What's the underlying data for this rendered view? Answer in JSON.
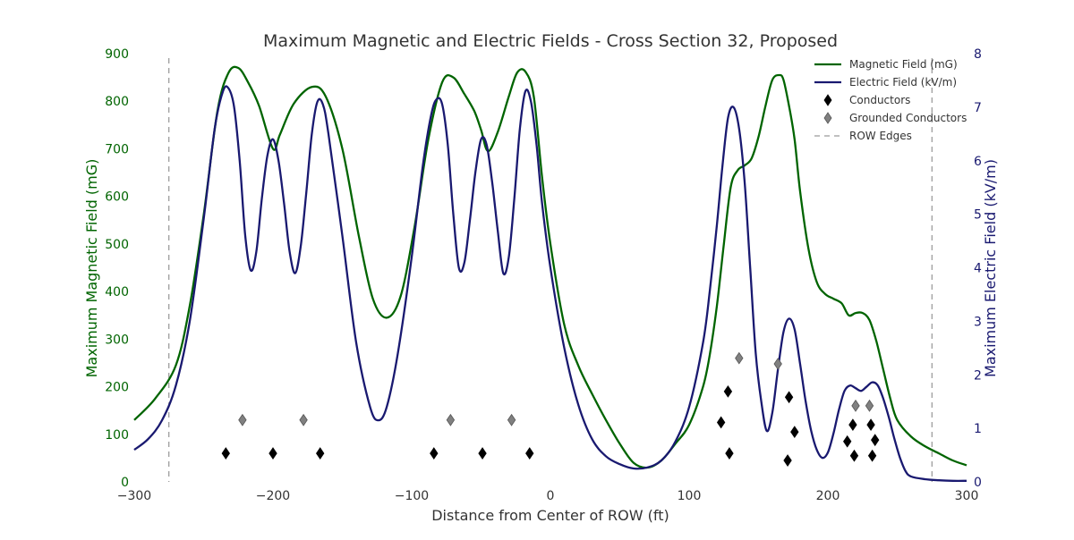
{
  "chart_data": {
    "type": "line",
    "title": "Maximum Magnetic and Electric Fields - Cross Section 32, Proposed",
    "xlabel": "Distance from Center of ROW (ft)",
    "ylabel_left": "Maximum Magnetic Field (mG)",
    "ylabel_right": "Maximum Electric Field (kV/m)",
    "xlim": [
      -300,
      300
    ],
    "ylim_left": [
      0,
      900
    ],
    "ylim_right": [
      0,
      8
    ],
    "x_ticks": [
      -300,
      -200,
      -100,
      0,
      100,
      200,
      300
    ],
    "x_tick_labels": [
      "−300",
      "−200",
      "−100",
      "0",
      "100",
      "200",
      "300"
    ],
    "y_ticks_left": [
      0,
      100,
      200,
      300,
      400,
      500,
      600,
      700,
      800,
      900
    ],
    "y_ticks_right": [
      0,
      1,
      2,
      3,
      4,
      5,
      6,
      7,
      8
    ],
    "grid": false,
    "legend_position": "top-right",
    "colors": {
      "magnetic": "#006400",
      "electric": "#191970",
      "conductor": "#000000",
      "grounded": "#808080",
      "row_edge": "#808080"
    },
    "series": [
      {
        "name": "Magnetic Field (mG)",
        "axis": "left",
        "x": [
          -300,
          -285,
          -270,
          -260,
          -250,
          -240,
          -232,
          -225,
          -218,
          -210,
          -200,
          -195,
          -185,
          -172,
          -162,
          -150,
          -138,
          -128,
          -118,
          -108,
          -98,
          -88,
          -78,
          -70,
          -62,
          -55,
          -50,
          -45,
          -38,
          -30,
          -24,
          -18,
          -12,
          -6,
          0,
          10,
          20,
          30,
          40,
          50,
          60,
          70,
          80,
          90,
          100,
          110,
          115,
          120,
          125,
          130,
          135,
          140,
          145,
          150,
          155,
          160,
          165,
          168,
          172,
          176,
          180,
          186,
          192,
          198,
          204,
          210,
          215,
          220,
          225,
          230,
          235,
          240,
          245,
          250,
          260,
          270,
          280,
          290,
          300
        ],
        "values": [
          130,
          175,
          245,
          370,
          560,
          780,
          860,
          870,
          840,
          790,
          700,
          730,
          795,
          830,
          810,
          700,
          515,
          385,
          345,
          390,
          535,
          720,
          840,
          850,
          815,
          780,
          740,
          695,
          735,
          810,
          860,
          862,
          810,
          640,
          500,
          330,
          245,
          185,
          130,
          80,
          40,
          30,
          45,
          80,
          120,
          200,
          270,
          370,
          500,
          620,
          655,
          665,
          680,
          725,
          790,
          845,
          855,
          845,
          790,
          720,
          610,
          490,
          420,
          395,
          385,
          375,
          350,
          355,
          355,
          340,
          295,
          235,
          175,
          130,
          95,
          75,
          60,
          45,
          35
        ]
      },
      {
        "name": "Electric Field (kV/m)",
        "axis": "right",
        "x": [
          -300,
          -290,
          -280,
          -270,
          -260,
          -250,
          -242,
          -236,
          -232,
          -228,
          -224,
          -220,
          -216,
          -212,
          -208,
          -204,
          -200,
          -196,
          -192,
          -188,
          -184,
          -180,
          -176,
          -172,
          -168,
          -164,
          -160,
          -150,
          -140,
          -130,
          -124,
          -118,
          -110,
          -100,
          -92,
          -86,
          -82,
          -78,
          -74,
          -70,
          -66,
          -62,
          -58,
          -54,
          -50,
          -46,
          -42,
          -38,
          -34,
          -30,
          -26,
          -22,
          -18,
          -14,
          -10,
          -6,
          0,
          10,
          20,
          30,
          40,
          50,
          60,
          70,
          80,
          90,
          100,
          110,
          115,
          120,
          124,
          128,
          132,
          136,
          140,
          144,
          148,
          152,
          156,
          160,
          164,
          168,
          172,
          176,
          180,
          184,
          188,
          192,
          196,
          200,
          204,
          208,
          212,
          216,
          220,
          224,
          228,
          232,
          236,
          240,
          244,
          248,
          252,
          256,
          260,
          270,
          280,
          290,
          300
        ],
        "values": [
          0.6,
          0.8,
          1.15,
          1.8,
          3.0,
          4.9,
          6.6,
          7.3,
          7.35,
          7.0,
          6.0,
          4.6,
          3.95,
          4.3,
          5.3,
          6.1,
          6.4,
          6.0,
          5.2,
          4.3,
          3.9,
          4.4,
          5.4,
          6.5,
          7.1,
          7.05,
          6.5,
          4.6,
          2.6,
          1.4,
          1.15,
          1.4,
          2.4,
          4.2,
          5.9,
          6.85,
          7.15,
          7.05,
          6.3,
          5.0,
          4.0,
          4.1,
          4.9,
          5.8,
          6.4,
          6.3,
          5.6,
          4.7,
          3.9,
          4.2,
          5.3,
          6.6,
          7.3,
          7.1,
          6.3,
          5.2,
          4.0,
          2.5,
          1.45,
          0.8,
          0.48,
          0.33,
          0.25,
          0.27,
          0.4,
          0.75,
          1.4,
          2.6,
          3.6,
          4.8,
          5.9,
          6.8,
          7.0,
          6.6,
          5.6,
          4.0,
          2.4,
          1.5,
          0.95,
          1.3,
          2.1,
          2.8,
          3.05,
          2.85,
          2.2,
          1.5,
          0.95,
          0.6,
          0.45,
          0.55,
          0.9,
          1.35,
          1.7,
          1.8,
          1.75,
          1.7,
          1.78,
          1.86,
          1.8,
          1.55,
          1.2,
          0.8,
          0.45,
          0.2,
          0.1,
          0.05,
          0.03,
          0.02,
          0.02
        ]
      },
      {
        "name": "Conductors",
        "type": "scatter",
        "axis": "left",
        "marker": "diamond",
        "points": [
          [
            -234,
            60
          ],
          [
            -200,
            60
          ],
          [
            -166,
            60
          ],
          [
            -84,
            60
          ],
          [
            -49,
            60
          ],
          [
            -15,
            60
          ],
          [
            123,
            125
          ],
          [
            128,
            190
          ],
          [
            129,
            60
          ],
          [
            172,
            178
          ],
          [
            176,
            105
          ],
          [
            171,
            45
          ],
          [
            214,
            85
          ],
          [
            218,
            120
          ],
          [
            219,
            55
          ],
          [
            231,
            120
          ],
          [
            234,
            88
          ],
          [
            232,
            55
          ]
        ]
      },
      {
        "name": "Grounded Conductors",
        "type": "scatter",
        "axis": "left",
        "marker": "diamond",
        "points": [
          [
            -222,
            130
          ],
          [
            -178,
            130
          ],
          [
            -72,
            130
          ],
          [
            -28,
            130
          ],
          [
            136,
            260
          ],
          [
            164,
            248
          ],
          [
            220,
            160
          ],
          [
            230,
            160
          ]
        ]
      },
      {
        "name": "ROW Edges",
        "type": "vline",
        "style": "dashed",
        "x": [
          -275,
          275
        ]
      }
    ]
  }
}
